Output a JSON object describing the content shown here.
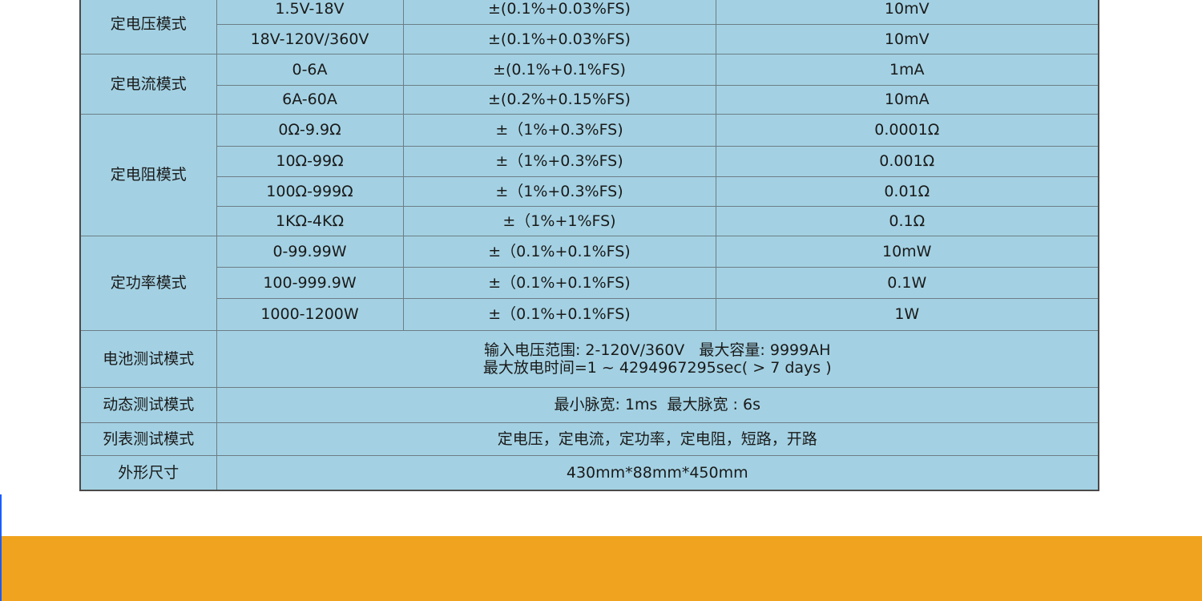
{
  "colors": {
    "table_bg": "#a3d1e3",
    "band": "#f0a31e",
    "edge": "#1a5cff"
  },
  "groups": [
    {
      "mode": "定电压模式",
      "rows": [
        [
          "1.5V-18V",
          "±(0.1%+0.03%FS)",
          "10mV"
        ],
        [
          "18V-120V/360V",
          "±(0.1%+0.03%FS)",
          "10mV"
        ]
      ]
    },
    {
      "mode": "定电流模式",
      "rows": [
        [
          "0-6A",
          "±(0.1%+0.1%FS)",
          "1mA"
        ],
        [
          "6A-60A",
          "±(0.2%+0.15%FS)",
          "10mA"
        ]
      ]
    },
    {
      "mode": "定电阻模式",
      "rows": [
        [
          "0Ω-9.9Ω",
          "±（1%+0.3%FS)",
          "0.0001Ω"
        ],
        [
          "10Ω-99Ω",
          "±（1%+0.3%FS)",
          "0.001Ω"
        ],
        [
          "100Ω-999Ω",
          "±（1%+0.3%FS)",
          "0.01Ω"
        ],
        [
          "1KΩ-4KΩ",
          "±（1%+1%FS)",
          "0.1Ω"
        ]
      ]
    },
    {
      "mode": "定功率模式",
      "rows": [
        [
          "0-99.99W",
          "±（0.1%+0.1%FS)",
          "10mW"
        ],
        [
          "100-999.9W",
          "±（0.1%+0.1%FS)",
          "0.1W"
        ],
        [
          "1000-1200W",
          "±（0.1%+0.1%FS)",
          "1W"
        ]
      ]
    }
  ],
  "wide": [
    {
      "mode": "电池测试模式",
      "lines": [
        "输入电压范围: 2-120V/360V   最大容量: 9999AH",
        "最大放电时间=1 ~ 4294967295sec( > 7 days )"
      ]
    },
    {
      "mode": "动态测试模式",
      "lines": [
        "最小脉宽: 1ms  最大脉宽 : 6s"
      ]
    },
    {
      "mode": "列表测试模式",
      "lines": [
        "定电压，定电流，定功率，定电阻，短路，开路"
      ]
    },
    {
      "mode": "外形尺寸",
      "lines": [
        "430mm*88mm*450mm"
      ]
    }
  ]
}
